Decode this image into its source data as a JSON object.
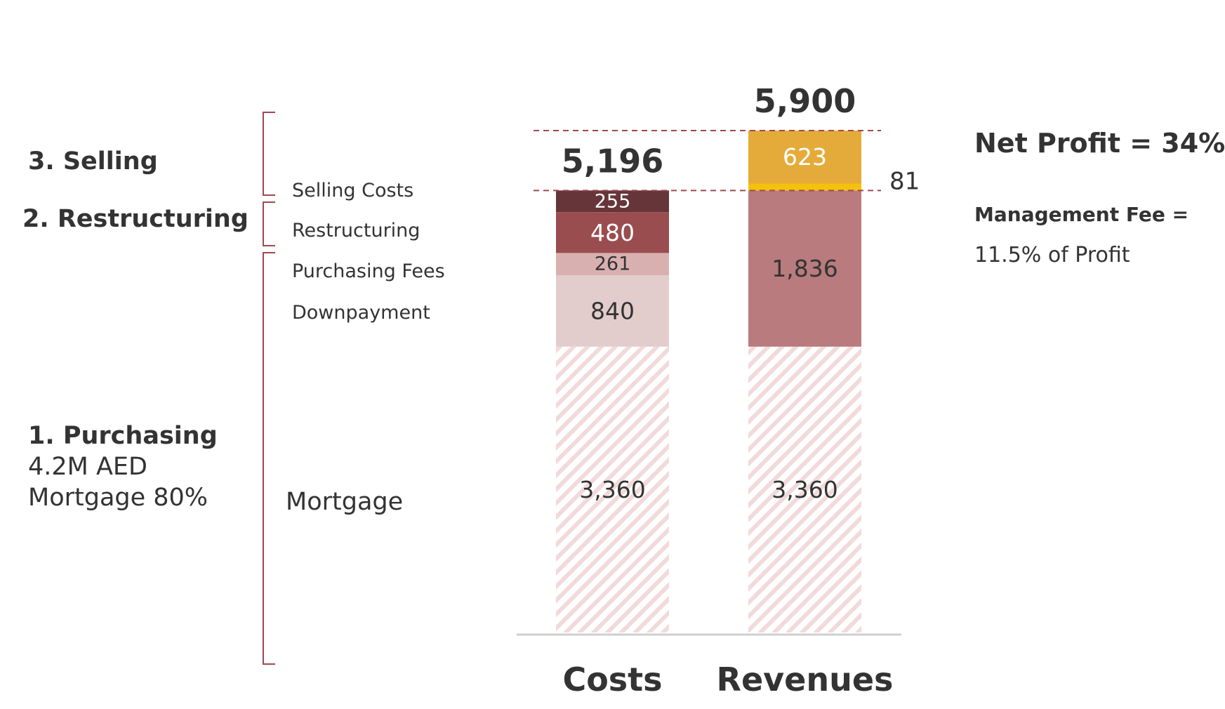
{
  "phases": [
    {
      "key": "selling",
      "title": "3. Selling",
      "lines": []
    },
    {
      "key": "restructuring",
      "title": "2. Restructuring",
      "lines": []
    },
    {
      "key": "purchasing",
      "title": "1. Purchasing",
      "lines": [
        "4.2M AED",
        "Mortgage 80%"
      ]
    }
  ],
  "categories": {
    "selling_costs": "Selling Costs",
    "restructuring": "Restructuring",
    "purchasing_fees": "Purchasing Fees",
    "downpayment": "Downpayment",
    "mortgage": "Mortgage"
  },
  "summary": {
    "net_profit": "Net Profit = 34%",
    "management_fee_label": "Management Fee =",
    "management_fee_value": "11.5% of Profit"
  },
  "chart_data": {
    "type": "bar",
    "stacked": true,
    "categories": [
      "Costs",
      "Revenues"
    ],
    "totals": [
      5196,
      5900
    ],
    "total_labels": [
      "5,196",
      "5,900"
    ],
    "ylim": [
      0,
      5900
    ],
    "bars": [
      {
        "name": "Costs",
        "segments": [
          {
            "name": "Mortgage",
            "value": 3360,
            "label": "3,360",
            "color": "#f2dcdc",
            "hatched": true,
            "label_color": "#333333"
          },
          {
            "name": "Downpayment",
            "value": 840,
            "label": "840",
            "color": "#e3cccc",
            "label_color": "#333333"
          },
          {
            "name": "Purchasing Fees",
            "value": 261,
            "label": "261",
            "color": "#d9b0b0",
            "label_color": "#333333"
          },
          {
            "name": "Restructuring",
            "value": 480,
            "label": "480",
            "color": "#9a4d4f",
            "label_color": "#ffffff"
          },
          {
            "name": "Selling Costs",
            "value": 255,
            "label": "255",
            "color": "#66353a",
            "label_color": "#ffffff"
          }
        ]
      },
      {
        "name": "Revenues",
        "segments": [
          {
            "name": "Mortgage",
            "value": 3360,
            "label": "3,360",
            "color": "#f2dcdc",
            "hatched": true,
            "label_color": "#333333"
          },
          {
            "name": "Revenue",
            "value": 1836,
            "label": "1,836",
            "color": "#b97b7d",
            "label_color": "#333333"
          },
          {
            "name": "Management Fee",
            "value": 81,
            "label": "81",
            "color": "#f4c20d",
            "label_outside": true,
            "label_color": "#333333"
          },
          {
            "name": "Net Profit",
            "value": 623,
            "label": "623",
            "color": "#e5ab3a",
            "label_color": "#ffffff"
          }
        ]
      }
    ],
    "reference_lines": [
      {
        "value": 5900,
        "style": "dashed",
        "color": "#a0494c"
      },
      {
        "value": 5196,
        "style": "dashed",
        "color": "#a0494c"
      }
    ]
  }
}
